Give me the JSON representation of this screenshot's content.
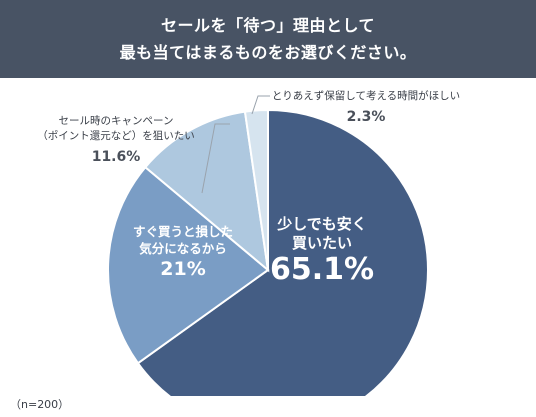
{
  "header": {
    "line1": "セールを「待つ」理由として",
    "line2": "最も当てはまるものをお選びください。"
  },
  "chart_data": {
    "type": "pie",
    "title": "セールを「待つ」理由として最も当てはまるものをお選びください。",
    "slices": [
      {
        "label": "少しでも安く買いたい",
        "value": 65.1,
        "display": "65.1%",
        "color": "#445d84"
      },
      {
        "label": "すぐ買うと損した気分になるから",
        "value": 21,
        "display": "21%",
        "color": "#7a9dc5"
      },
      {
        "label": "セール時のキャンペーン（ポイント還元など）を狙いたい",
        "value": 11.6,
        "display": "11.6%",
        "color": "#aec8df"
      },
      {
        "label": "とりあえず保留して考える時間がほしい",
        "value": 2.3,
        "display": "2.3%",
        "color": "#d6e4ef"
      }
    ]
  },
  "labels": {
    "s1_line1": "少しでも安く",
    "s1_line2": "買いたい",
    "s2_line1": "すぐ買うと損した",
    "s2_line2": "気分になるから",
    "s3_line1": "セール時のキャンペーン",
    "s3_line2": "（ポイント還元など）を狙いたい",
    "s4_line1": "とりあえず保留して考える時間がほしい"
  },
  "note": "（n=200）"
}
